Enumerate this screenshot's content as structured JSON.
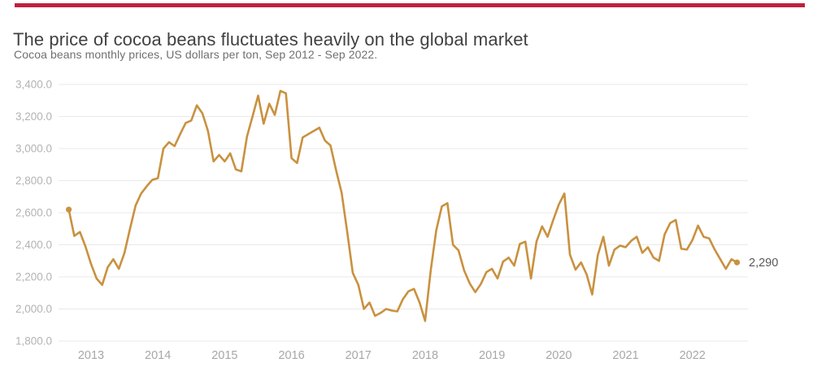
{
  "colors": {
    "accent": "#C01F3F",
    "line": "#C9913F",
    "title_text": "#414143",
    "subtitle_text": "#707072",
    "grid": "#E9E9EA",
    "y_tick_text": "#B3B3B5",
    "x_tick_text": "#A7A7A9",
    "end_label_text": "#58585A"
  },
  "header": {
    "title": "The price of cocoa beans fluctuates heavily on the global market",
    "subtitle": "Cocoa beans monthly prices, US dollars per ton, Sep 2012 - Sep 2022."
  },
  "chart_data": {
    "type": "line",
    "title": "The price of cocoa beans fluctuates heavily on the global market",
    "subtitle": "Cocoa beans monthly prices, US dollars per ton, Sep 2012 - Sep 2022.",
    "series_name": "Cocoa beans monthly price, US dollars per ton",
    "frequency": "monthly",
    "x_start": "Sep 2012",
    "x_end": "Sep 2022",
    "ylim": [
      1800,
      3400
    ],
    "grid": "horizontal",
    "legend_position": "none",
    "y_ticks": [
      3400,
      3200,
      3000,
      2800,
      2600,
      2400,
      2200,
      2000,
      1800
    ],
    "y_tick_labels": [
      "3,400.0",
      "3,200.0",
      "3,000.0",
      "2,800.0",
      "2,600.0",
      "2,400.0",
      "2,200.0",
      "2,000.0",
      "1,800.0"
    ],
    "x_tick_labels": [
      "2013",
      "2014",
      "2015",
      "2016",
      "2017",
      "2018",
      "2019",
      "2020",
      "2021",
      "2022"
    ],
    "end_label": "2,290",
    "start_value": 2620,
    "end_value": 2290,
    "values": [
      2620,
      2455,
      2480,
      2390,
      2280,
      2190,
      2150,
      2260,
      2310,
      2250,
      2350,
      2500,
      2645,
      2720,
      2765,
      2805,
      2815,
      3000,
      3040,
      3015,
      3090,
      3160,
      3175,
      3270,
      3220,
      3110,
      2920,
      2960,
      2920,
      2970,
      2870,
      2858,
      3075,
      3200,
      3330,
      3155,
      3280,
      3210,
      3360,
      3345,
      2940,
      2910,
      3070,
      3090,
      3110,
      3130,
      3050,
      3020,
      2865,
      2725,
      2480,
      2225,
      2150,
      2000,
      2040,
      1957,
      1975,
      2000,
      1990,
      1985,
      2060,
      2110,
      2125,
      2040,
      1925,
      2240,
      2490,
      2640,
      2660,
      2400,
      2365,
      2240,
      2160,
      2105,
      2155,
      2230,
      2250,
      2190,
      2295,
      2320,
      2270,
      2405,
      2420,
      2190,
      2420,
      2515,
      2450,
      2555,
      2650,
      2720,
      2340,
      2245,
      2290,
      2215,
      2090,
      2335,
      2450,
      2270,
      2370,
      2395,
      2385,
      2425,
      2450,
      2350,
      2385,
      2320,
      2300,
      2465,
      2535,
      2555,
      2375,
      2370,
      2430,
      2520,
      2450,
      2440,
      2370,
      2310,
      2250,
      2310,
      2290
    ]
  }
}
